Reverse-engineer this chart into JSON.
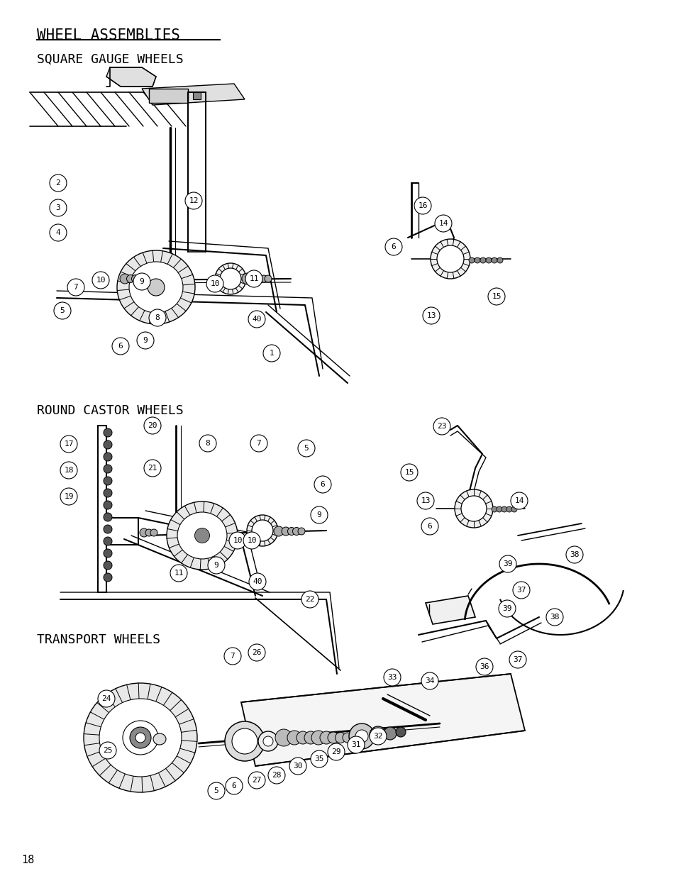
{
  "title": "WHEEL ASSEMBLIES",
  "section1": "SQUARE GAUGE WHEELS",
  "section2": "ROUND CASTOR WHEELS",
  "section3": "TRANSPORT WHEELS",
  "page_number": "18",
  "bg": "#ffffff",
  "fg": "#000000",
  "title_fs": 15,
  "sec_fs": 13,
  "lbl_fs": 8,
  "page_fs": 11
}
